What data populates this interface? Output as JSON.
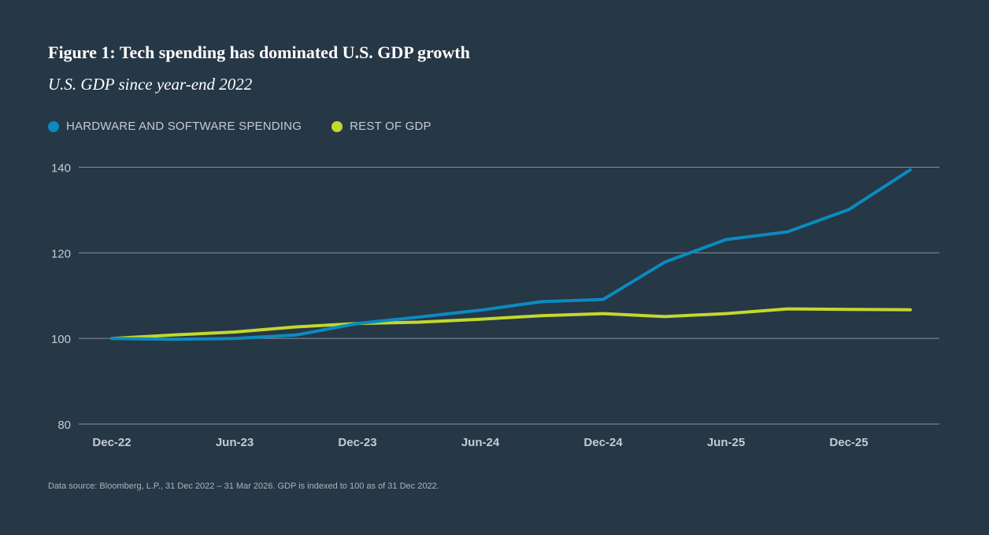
{
  "chart_data": {
    "type": "line",
    "title": "Figure 1: Tech spending has dominated U.S. GDP growth",
    "subtitle": "U.S. GDP since year-end 2022",
    "xlabel": "",
    "ylabel": "",
    "x": [
      "Dec-22",
      "Mar-23",
      "Jun-23",
      "Sep-23",
      "Dec-23",
      "Mar-24",
      "Jun-24",
      "Sep-24",
      "Dec-24",
      "Mar-25",
      "Jun-25",
      "Sep-25",
      "Dec-25",
      "Mar-26"
    ],
    "x_tick_labels": [
      "Dec-22",
      "Jun-23",
      "Dec-23",
      "Jun-24",
      "Dec-24",
      "Jun-25",
      "Dec-25"
    ],
    "ylim": [
      80,
      140
    ],
    "y_ticks": [
      140,
      120,
      100,
      80
    ],
    "grid": true,
    "legend_position": "top-left",
    "series": [
      {
        "name": "HARDWARE AND SOFTWARE SPENDING",
        "color": "#0b8bbf",
        "values": [
          100.0,
          99.8,
          100.0,
          100.8,
          103.5,
          105.0,
          106.6,
          108.6,
          109.1,
          117.8,
          123.1,
          124.9,
          130.1,
          139.4
        ]
      },
      {
        "name": "REST OF GDP",
        "color": "#c2d82d",
        "values": [
          100.0,
          100.8,
          101.5,
          102.7,
          103.5,
          103.8,
          104.5,
          105.3,
          105.8,
          105.1,
          105.8,
          106.9,
          106.8,
          106.7
        ]
      }
    ],
    "source_note": "Data source: Bloomberg, L.P., 31 Dec 2022 – 31 Mar 2026. GDP is indexed to 100 as of 31 Dec 2022."
  }
}
